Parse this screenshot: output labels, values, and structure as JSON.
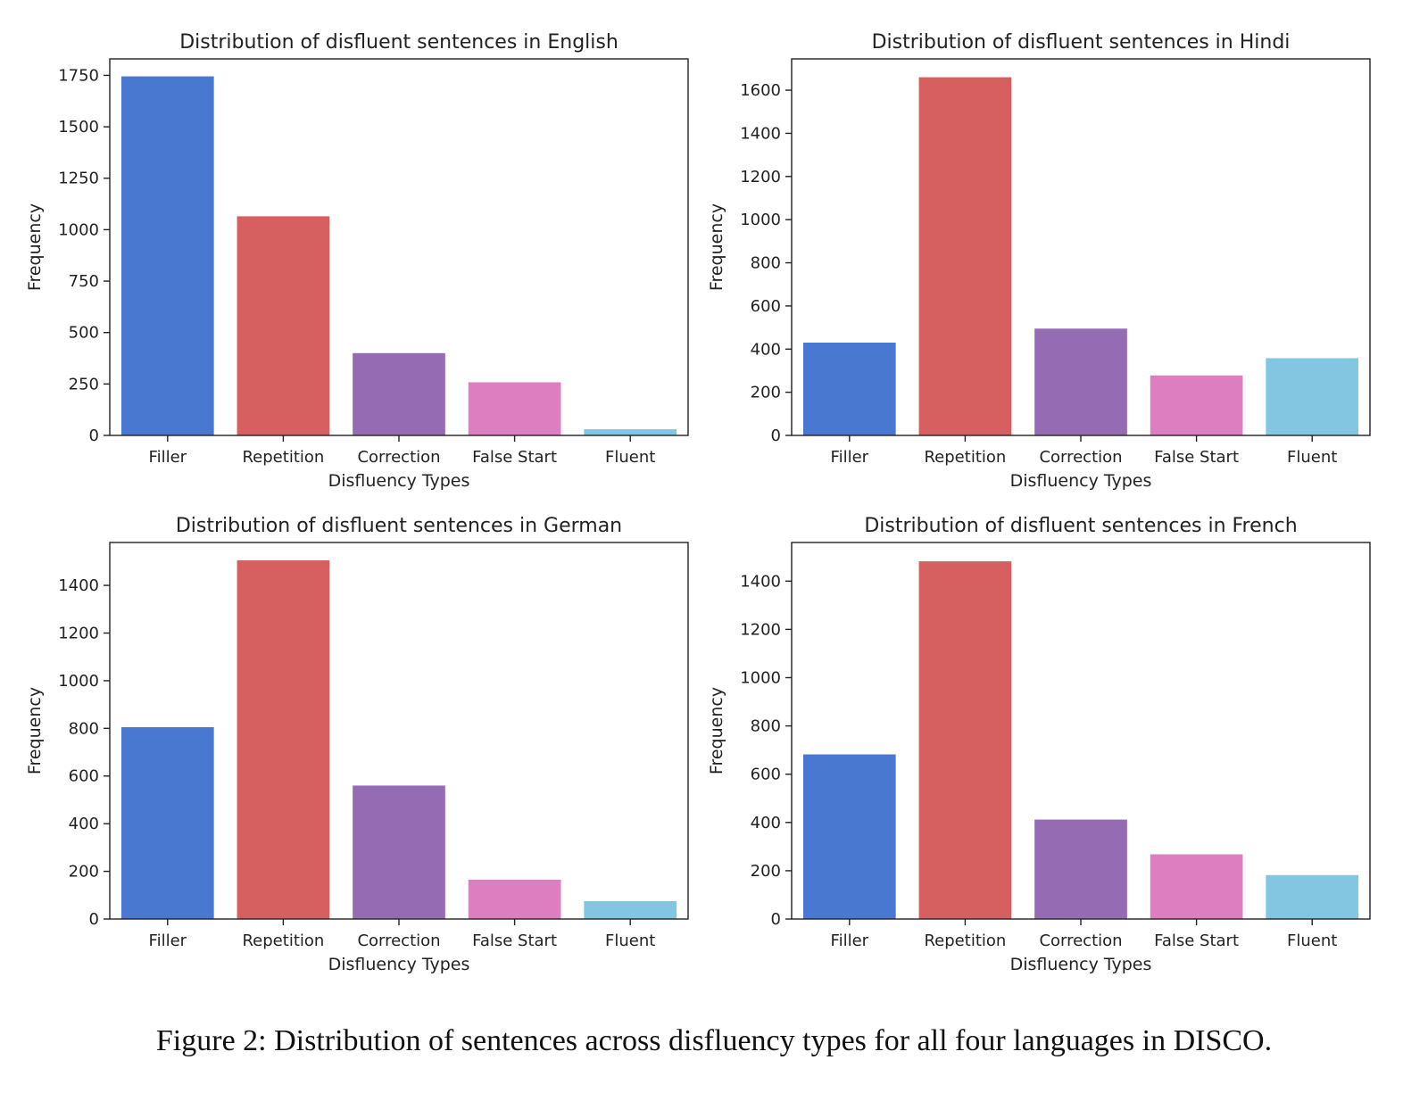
{
  "figure": {
    "caption": "Figure 2: Distribution of sentences across disfluency types for all four languages in DISCO."
  },
  "colors": {
    "Filler": "#4878CF",
    "Repetition": "#D65F5F",
    "Correction": "#956CB4",
    "False Start": "#DC7EC0",
    "Fluent": "#82C6E2",
    "axis": "#222222",
    "text": "#222222"
  },
  "chart_data": [
    {
      "type": "bar",
      "title": "Distribution of disfluent sentences in English",
      "xlabel": "Disfluency Types",
      "ylabel": "Frequency",
      "categories": [
        "Filler",
        "Repetition",
        "Correction",
        "False Start",
        "Fluent"
      ],
      "values": [
        1745,
        1065,
        400,
        258,
        30
      ],
      "ylim": [
        0,
        1830
      ],
      "yticks": [
        0,
        250,
        500,
        750,
        1000,
        1250,
        1500,
        1750
      ],
      "grid": false,
      "legend": "none"
    },
    {
      "type": "bar",
      "title": "Distribution of disfluent sentences in Hindi",
      "xlabel": "Disfluency Types",
      "ylabel": "Frequency",
      "categories": [
        "Filler",
        "Repetition",
        "Correction",
        "False Start",
        "Fluent"
      ],
      "values": [
        430,
        1660,
        495,
        278,
        358
      ],
      "ylim": [
        0,
        1745
      ],
      "yticks": [
        0,
        200,
        400,
        600,
        800,
        1000,
        1200,
        1400,
        1600
      ],
      "grid": false,
      "legend": "none"
    },
    {
      "type": "bar",
      "title": "Distribution of disfluent sentences in German",
      "xlabel": "Disfluency Types",
      "ylabel": "Frequency",
      "categories": [
        "Filler",
        "Repetition",
        "Correction",
        "False Start",
        "Fluent"
      ],
      "values": [
        805,
        1505,
        560,
        165,
        75
      ],
      "ylim": [
        0,
        1580
      ],
      "yticks": [
        0,
        200,
        400,
        600,
        800,
        1000,
        1200,
        1400
      ],
      "grid": false,
      "legend": "none"
    },
    {
      "type": "bar",
      "title": "Distribution of disfluent sentences in French",
      "xlabel": "Disfluency Types",
      "ylabel": "Frequency",
      "categories": [
        "Filler",
        "Repetition",
        "Correction",
        "False Start",
        "Fluent"
      ],
      "values": [
        682,
        1482,
        412,
        268,
        182
      ],
      "ylim": [
        0,
        1560
      ],
      "yticks": [
        0,
        200,
        400,
        600,
        800,
        1000,
        1200,
        1400
      ],
      "grid": false,
      "legend": "none"
    }
  ]
}
